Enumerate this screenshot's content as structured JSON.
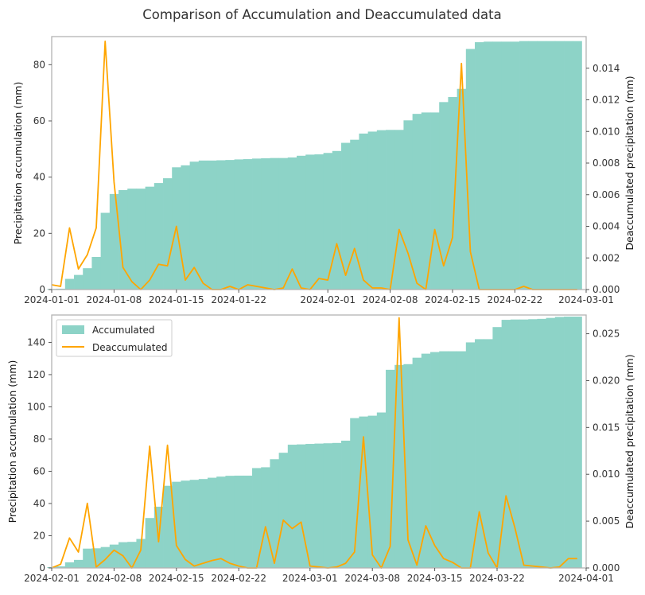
{
  "figure": {
    "title": "Comparison of Accumulation and Deaccumulated data"
  },
  "colors": {
    "accumulated": "#8dd3c7",
    "deaccumulated": "#ffa500",
    "frame": "#b3b3b3"
  },
  "chart_data": [
    {
      "type": "bar",
      "ylabel": "Precipitation accumulation (mm)",
      "y2label": "Deaccumulated precipitation (mm)",
      "xlim": [
        "2024-01-01",
        "2024-03-01"
      ],
      "ylim": [
        0,
        90
      ],
      "y2lim": [
        0,
        0.016
      ],
      "xticks": [
        "2024-01-01",
        "2024-01-08",
        "2024-01-15",
        "2024-01-22",
        "2024-02-01",
        "2024-02-08",
        "2024-02-15",
        "2024-02-22",
        "2024-03-01"
      ],
      "yticks": [
        0,
        20,
        40,
        60,
        80
      ],
      "y2ticks": [
        "0.000",
        "0.002",
        "0.004",
        "0.006",
        "0.008",
        "0.010",
        "0.012",
        "0.014"
      ],
      "grid": false,
      "x": [
        "2024-01-01",
        "2024-01-02",
        "2024-01-03",
        "2024-01-04",
        "2024-01-05",
        "2024-01-06",
        "2024-01-07",
        "2024-01-08",
        "2024-01-09",
        "2024-01-10",
        "2024-01-11",
        "2024-01-12",
        "2024-01-13",
        "2024-01-14",
        "2024-01-15",
        "2024-01-16",
        "2024-01-17",
        "2024-01-18",
        "2024-01-19",
        "2024-01-20",
        "2024-01-21",
        "2024-01-22",
        "2024-01-23",
        "2024-01-24",
        "2024-01-25",
        "2024-01-26",
        "2024-01-27",
        "2024-01-28",
        "2024-01-29",
        "2024-01-30",
        "2024-01-31",
        "2024-02-01",
        "2024-02-02",
        "2024-02-03",
        "2024-02-04",
        "2024-02-05",
        "2024-02-06",
        "2024-02-07",
        "2024-02-08",
        "2024-02-09",
        "2024-02-10",
        "2024-02-11",
        "2024-02-12",
        "2024-02-13",
        "2024-02-14",
        "2024-02-15",
        "2024-02-16",
        "2024-02-17",
        "2024-02-18",
        "2024-02-19",
        "2024-02-20",
        "2024-02-21",
        "2024-02-22",
        "2024-02-23",
        "2024-02-24",
        "2024-02-25",
        "2024-02-26",
        "2024-02-27",
        "2024-02-28",
        "2024-02-29"
      ],
      "series": [
        {
          "name": "Accumulated",
          "type": "bar",
          "axis": "left",
          "values": [
            0.2,
            0.3,
            3.8,
            5.2,
            7.6,
            11.6,
            27.3,
            34.0,
            35.4,
            35.9,
            35.9,
            36.6,
            37.9,
            39.6,
            43.5,
            44.2,
            45.5,
            45.9,
            45.9,
            46.0,
            46.1,
            46.3,
            46.4,
            46.6,
            46.7,
            46.8,
            46.8,
            47.0,
            47.6,
            48.0,
            48.1,
            48.6,
            49.3,
            52.2,
            53.3,
            55.5,
            56.2,
            56.7,
            56.8,
            56.8,
            60.2,
            62.5,
            63.0,
            63.0,
            66.7,
            68.5,
            71.4,
            85.6,
            88.0,
            88.2,
            88.2,
            88.2,
            88.2,
            88.4,
            88.4,
            88.4,
            88.4,
            88.4,
            88.4,
            88.4
          ]
        },
        {
          "name": "Deaccumulated",
          "type": "line",
          "axis": "right",
          "values": [
            0.0003,
            0.0002,
            0.0039,
            0.0013,
            0.0022,
            0.0039,
            0.0157,
            0.0068,
            0.0014,
            0.0005,
            0.0,
            0.0006,
            0.0016,
            0.0015,
            0.004,
            0.0006,
            0.0014,
            0.0004,
            0.0,
            0.0,
            0.0002,
            0.0,
            0.0003,
            0.0002,
            0.0001,
            0.0,
            0.0001,
            0.0013,
            0.0001,
            0.0,
            0.0007,
            0.0006,
            0.0029,
            0.0009,
            0.0026,
            0.0006,
            0.0001,
            0.0001,
            0.0,
            0.0038,
            0.0023,
            0.0004,
            0.0,
            0.0038,
            0.0015,
            0.0033,
            0.0143,
            0.0024,
            0.0,
            0.0,
            0.0,
            0.0,
            0.0,
            0.0002,
            0.0,
            0.0,
            0.0,
            0.0,
            0.0,
            0.0
          ]
        }
      ]
    },
    {
      "type": "bar",
      "ylabel": "Precipitation accumulation (mm)",
      "y2label": "Deaccumulated precipitation (mm)",
      "xlim": [
        "2024-02-01",
        "2024-04-01"
      ],
      "ylim": [
        0,
        157
      ],
      "y2lim": [
        0,
        0.027
      ],
      "xticks": [
        "2024-02-01",
        "2024-02-08",
        "2024-02-15",
        "2024-02-22",
        "2024-03-01",
        "2024-03-08",
        "2024-03-15",
        "2024-03-22",
        "2024-04-01"
      ],
      "yticks": [
        0,
        20,
        40,
        60,
        80,
        100,
        120,
        140
      ],
      "y2ticks": [
        "0.000",
        "0.005",
        "0.010",
        "0.015",
        "0.020",
        "0.025"
      ],
      "grid": false,
      "legend_position": "upper-left",
      "x": [
        "2024-02-01",
        "2024-02-02",
        "2024-02-03",
        "2024-02-04",
        "2024-02-05",
        "2024-02-06",
        "2024-02-07",
        "2024-02-08",
        "2024-02-09",
        "2024-02-10",
        "2024-02-11",
        "2024-02-12",
        "2024-02-13",
        "2024-02-14",
        "2024-02-15",
        "2024-02-16",
        "2024-02-17",
        "2024-02-18",
        "2024-02-19",
        "2024-02-20",
        "2024-02-21",
        "2024-02-22",
        "2024-02-23",
        "2024-02-24",
        "2024-02-25",
        "2024-02-26",
        "2024-02-27",
        "2024-02-28",
        "2024-02-29",
        "2024-03-01",
        "2024-03-02",
        "2024-03-03",
        "2024-03-04",
        "2024-03-05",
        "2024-03-06",
        "2024-03-07",
        "2024-03-08",
        "2024-03-09",
        "2024-03-10",
        "2024-03-11",
        "2024-03-12",
        "2024-03-13",
        "2024-03-14",
        "2024-03-15",
        "2024-03-16",
        "2024-03-17",
        "2024-03-18",
        "2024-03-19",
        "2024-03-20",
        "2024-03-21",
        "2024-03-22",
        "2024-03-23",
        "2024-03-24",
        "2024-03-25",
        "2024-03-26",
        "2024-03-27",
        "2024-03-28",
        "2024-03-29",
        "2024-03-30",
        "2024-03-31"
      ],
      "series": [
        {
          "name": "Accumulated",
          "type": "bar",
          "axis": "left",
          "values": [
            0.5,
            1.0,
            3.5,
            5.0,
            12.0,
            12.2,
            13.0,
            14.5,
            16.0,
            16.2,
            18.0,
            31.0,
            38.0,
            51.0,
            53.5,
            54.2,
            54.7,
            55.2,
            56.0,
            56.7,
            57.2,
            57.3,
            57.3,
            62.0,
            62.5,
            67.5,
            71.5,
            76.5,
            76.7,
            77.0,
            77.2,
            77.4,
            77.6,
            79.0,
            93.0,
            94.0,
            94.5,
            96.5,
            123.0,
            126.0,
            126.5,
            130.5,
            133.0,
            134.0,
            134.5,
            134.5,
            134.5,
            140.0,
            142.0,
            142.0,
            149.5,
            154.0,
            154.2,
            154.2,
            154.4,
            154.6,
            155.2,
            155.8,
            156.0,
            156.0
          ]
        },
        {
          "name": "Deaccumulated",
          "type": "line",
          "axis": "right",
          "values": [
            0.0,
            0.0004,
            0.0032,
            0.0017,
            0.0069,
            0.0001,
            0.0009,
            0.0019,
            0.0013,
            0.0,
            0.0019,
            0.013,
            0.0028,
            0.0131,
            0.0024,
            0.0009,
            0.0002,
            0.0005,
            0.0008,
            0.001,
            0.0005,
            0.0002,
            0.0,
            0.0,
            0.0044,
            0.0005,
            0.0051,
            0.0042,
            0.0049,
            0.0002,
            0.0001,
            0.0,
            0.0001,
            0.0005,
            0.0017,
            0.014,
            0.0014,
            0.0,
            0.0023,
            0.0267,
            0.003,
            0.0003,
            0.0045,
            0.0024,
            0.001,
            0.0006,
            0.0,
            0.0,
            0.006,
            0.0016,
            0.0,
            0.0077,
            0.0043,
            0.0003,
            0.0002,
            0.0001,
            0.0,
            0.0001,
            0.001,
            0.001
          ]
        }
      ]
    }
  ]
}
